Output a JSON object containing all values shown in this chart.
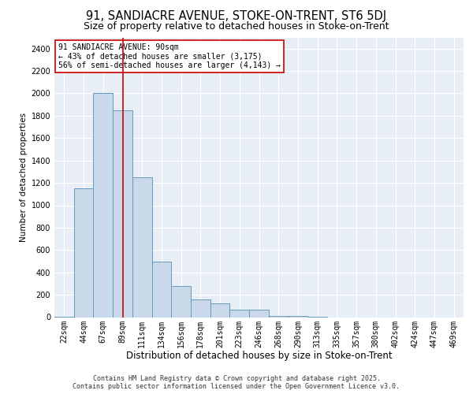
{
  "title1": "91, SANDIACRE AVENUE, STOKE-ON-TRENT, ST6 5DJ",
  "title2": "Size of property relative to detached houses in Stoke-on-Trent",
  "xlabel": "Distribution of detached houses by size in Stoke-on-Trent",
  "ylabel": "Number of detached properties",
  "bins": [
    "22sqm",
    "44sqm",
    "67sqm",
    "89sqm",
    "111sqm",
    "134sqm",
    "156sqm",
    "178sqm",
    "201sqm",
    "223sqm",
    "246sqm",
    "268sqm",
    "290sqm",
    "313sqm",
    "335sqm",
    "357sqm",
    "380sqm",
    "402sqm",
    "424sqm",
    "447sqm",
    "469sqm"
  ],
  "values": [
    5,
    1150,
    2000,
    1850,
    1250,
    500,
    280,
    160,
    120,
    70,
    65,
    10,
    10,
    5,
    0,
    0,
    0,
    0,
    0,
    0,
    0
  ],
  "bar_color": "#c9d9ea",
  "bar_edge_color": "#6699bb",
  "vline_x_idx": 3,
  "vline_color": "#cc0000",
  "annotation_text": "91 SANDIACRE AVENUE: 90sqm\n← 43% of detached houses are smaller (3,175)\n56% of semi-detached houses are larger (4,143) →",
  "annotation_box_color": "#ffffff",
  "annotation_box_edge": "#cc0000",
  "ylim": [
    0,
    2500
  ],
  "yticks": [
    0,
    200,
    400,
    600,
    800,
    1000,
    1200,
    1400,
    1600,
    1800,
    2000,
    2200,
    2400
  ],
  "bg_color": "#e8eef5",
  "grid_color": "#ffffff",
  "footer1": "Contains HM Land Registry data © Crown copyright and database right 2025.",
  "footer2": "Contains public sector information licensed under the Open Government Licence v3.0.",
  "title1_fontsize": 10.5,
  "title2_fontsize": 9,
  "xlabel_fontsize": 8.5,
  "ylabel_fontsize": 7.5,
  "tick_fontsize": 7,
  "annotation_fontsize": 7,
  "footer_fontsize": 6
}
